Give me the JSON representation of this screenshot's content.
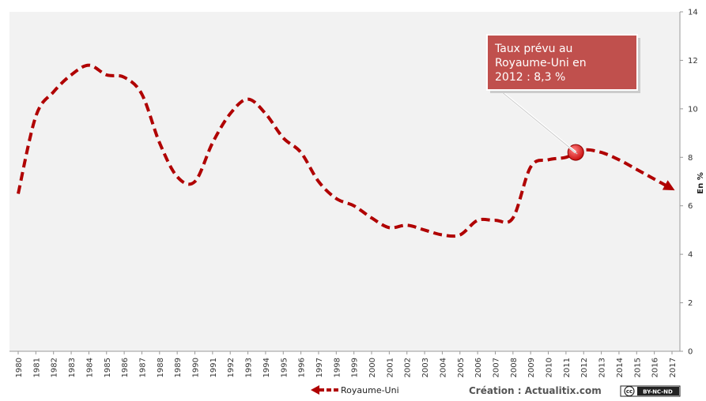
{
  "chart_data": {
    "type": "line",
    "x": [
      "1980",
      "1981",
      "1982",
      "1983",
      "1984",
      "1985",
      "1986",
      "1987",
      "1988",
      "1989",
      "1990",
      "1991",
      "1992",
      "1993",
      "1994",
      "1995",
      "1996",
      "1997",
      "1998",
      "1999",
      "2000",
      "2001",
      "2002",
      "2003",
      "2004",
      "2005",
      "2006",
      "2007",
      "2008",
      "2009",
      "2010",
      "2011",
      "2012",
      "2013",
      "2014",
      "2015",
      "2016",
      "2017"
    ],
    "series": [
      {
        "name": "Royaume-Uni",
        "color": "#b00000",
        "values": [
          6.5,
          9.7,
          10.7,
          11.4,
          11.8,
          11.4,
          11.3,
          10.6,
          8.6,
          7.2,
          7.0,
          8.6,
          9.8,
          10.4,
          9.8,
          8.8,
          8.2,
          7.0,
          6.3,
          6.0,
          5.5,
          5.1,
          5.2,
          5.0,
          4.8,
          4.8,
          5.4,
          5.4,
          5.5,
          7.6,
          7.9,
          8.0,
          8.3,
          8.2,
          7.9,
          7.5,
          7.1,
          6.7
        ]
      }
    ],
    "ylabel": "En %",
    "ylim": [
      0,
      14
    ],
    "yticks": [
      "0",
      "2",
      "4",
      "6",
      "8",
      "10",
      "12",
      "14"
    ],
    "y_axis_side": "right",
    "grid": false,
    "legend_placement": "bottom-center",
    "annotation": {
      "text_lines": [
        "Taux prévu au",
        "Royaume-Uni en",
        "2012 : 8,3 %"
      ],
      "x": "2012",
      "y": 8.3,
      "box_color": "#c0504d",
      "marker_color": "#cc1111"
    }
  },
  "credit": "Création : Actualitix.com",
  "license_badge": "BY-NC-ND",
  "license_cc": "cc",
  "colors": {
    "plot_bg": "#f2f2f2",
    "line": "#b00000",
    "callout": "#c0504d"
  }
}
